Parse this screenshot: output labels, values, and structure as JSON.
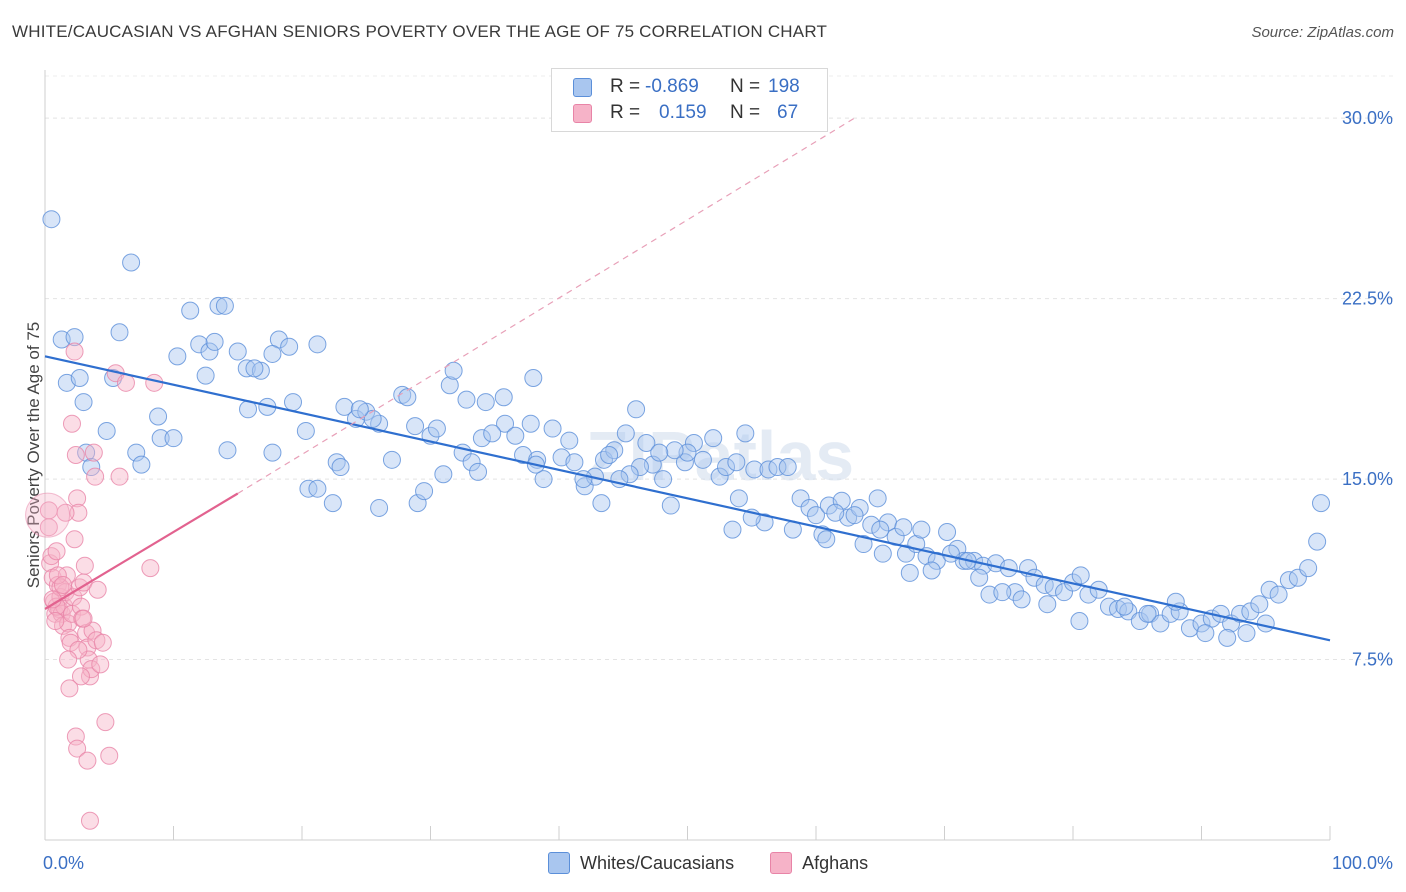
{
  "title": "WHITE/CAUCASIAN VS AFGHAN SENIORS POVERTY OVER THE AGE OF 75 CORRELATION CHART",
  "source": "Source: ZipAtlas.com",
  "watermark": "ZIPatlas",
  "legend_stats": [
    {
      "r_label": "R =",
      "r_value": "-0.869",
      "n_label": "N =",
      "n_value": "198",
      "color": "#a9c6ef"
    },
    {
      "r_label": "R =",
      "r_value": "0.159",
      "n_label": "N =",
      "n_value": "67",
      "color": "#f6b3c8"
    }
  ],
  "legend_bottom": [
    {
      "label": "Whites/Caucasians",
      "color": "#a9c6ef"
    },
    {
      "label": "Afghans",
      "color": "#f6b3c8"
    }
  ],
  "chart_data": {
    "type": "scatter",
    "title": "WHITE/CAUCASIAN VS AFGHAN SENIORS POVERTY OVER THE AGE OF 75 CORRELATION CHART",
    "xlabel": "",
    "ylabel": "Seniors Poverty Over the Age of 75",
    "xlim": [
      0,
      100
    ],
    "ylim": [
      0,
      32
    ],
    "x_tick_labels": [
      "0.0%",
      "100.0%"
    ],
    "y_ticks": [
      7.5,
      15.0,
      22.5,
      30.0
    ],
    "y_tick_labels": [
      "7.5%",
      "15.0%",
      "22.5%",
      "30.0%"
    ],
    "grid": true,
    "series": [
      {
        "name": "Whites/Caucasians",
        "color": "#5b8fd9",
        "fill": "#a9c6ef",
        "trend": {
          "x": [
            0,
            100
          ],
          "y": [
            20.1,
            8.3
          ],
          "color": "#2f6fcf",
          "style": "solid"
        },
        "points": [
          [
            0.5,
            25.8
          ],
          [
            6.7,
            24.0
          ],
          [
            11.3,
            22.0
          ],
          [
            13.5,
            22.2
          ],
          [
            14.0,
            22.2
          ],
          [
            1.3,
            20.8
          ],
          [
            2.3,
            20.9
          ],
          [
            5.8,
            21.1
          ],
          [
            10.3,
            20.1
          ],
          [
            12.0,
            20.6
          ],
          [
            12.8,
            20.3
          ],
          [
            13.2,
            20.7
          ],
          [
            15.0,
            20.3
          ],
          [
            18.2,
            20.8
          ],
          [
            19.0,
            20.5
          ],
          [
            21.2,
            20.6
          ],
          [
            17.7,
            20.2
          ],
          [
            15.7,
            19.6
          ],
          [
            16.8,
            19.5
          ],
          [
            16.3,
            19.6
          ],
          [
            1.7,
            19.0
          ],
          [
            2.7,
            19.2
          ],
          [
            5.3,
            19.2
          ],
          [
            12.5,
            19.3
          ],
          [
            3.0,
            18.2
          ],
          [
            8.8,
            17.6
          ],
          [
            15.8,
            17.9
          ],
          [
            17.3,
            18.0
          ],
          [
            19.3,
            18.2
          ],
          [
            23.3,
            18.0
          ],
          [
            24.2,
            17.5
          ],
          [
            25.0,
            17.8
          ],
          [
            26.0,
            17.3
          ],
          [
            27.8,
            18.5
          ],
          [
            28.2,
            18.4
          ],
          [
            4.8,
            17.0
          ],
          [
            9.0,
            16.7
          ],
          [
            10.0,
            16.7
          ],
          [
            14.2,
            16.2
          ],
          [
            7.1,
            16.1
          ],
          [
            3.2,
            16.1
          ],
          [
            17.7,
            16.1
          ],
          [
            20.3,
            17.0
          ],
          [
            22.7,
            15.7
          ],
          [
            28.8,
            17.2
          ],
          [
            30.0,
            16.8
          ],
          [
            30.5,
            17.1
          ],
          [
            31.5,
            18.9
          ],
          [
            31.8,
            19.5
          ],
          [
            32.8,
            18.3
          ],
          [
            34.3,
            18.2
          ],
          [
            35.7,
            18.4
          ],
          [
            34.0,
            16.7
          ],
          [
            32.5,
            16.1
          ],
          [
            35.8,
            17.3
          ],
          [
            37.8,
            17.3
          ],
          [
            37.2,
            16.0
          ],
          [
            38.0,
            19.2
          ],
          [
            38.3,
            15.8
          ],
          [
            33.2,
            15.7
          ],
          [
            3.6,
            15.5
          ],
          [
            7.5,
            15.6
          ],
          [
            20.5,
            14.6
          ],
          [
            21.2,
            14.6
          ],
          [
            22.4,
            14.0
          ],
          [
            26.0,
            13.8
          ],
          [
            29.0,
            14.0
          ],
          [
            29.5,
            14.5
          ],
          [
            38.8,
            15.0
          ],
          [
            38.2,
            15.6
          ],
          [
            40.2,
            15.9
          ],
          [
            41.2,
            15.7
          ],
          [
            42.0,
            14.7
          ],
          [
            42.8,
            15.1
          ],
          [
            43.3,
            14.0
          ],
          [
            41.9,
            15.0
          ],
          [
            43.5,
            15.8
          ],
          [
            44.3,
            16.2
          ],
          [
            45.2,
            16.9
          ],
          [
            46.0,
            17.9
          ],
          [
            46.8,
            16.5
          ],
          [
            47.3,
            15.6
          ],
          [
            48.1,
            15.0
          ],
          [
            48.7,
            13.9
          ],
          [
            49.8,
            15.7
          ],
          [
            50.5,
            16.5
          ],
          [
            51.2,
            15.8
          ],
          [
            52.0,
            16.7
          ],
          [
            52.5,
            15.1
          ],
          [
            53.0,
            15.5
          ],
          [
            53.8,
            15.7
          ],
          [
            54.5,
            16.9
          ],
          [
            55.2,
            15.4
          ],
          [
            56.3,
            15.4
          ],
          [
            57.0,
            15.5
          ],
          [
            57.8,
            15.5
          ],
          [
            58.8,
            14.2
          ],
          [
            59.5,
            13.8
          ],
          [
            60.0,
            13.5
          ],
          [
            61.0,
            13.9
          ],
          [
            62.0,
            14.1
          ],
          [
            62.5,
            13.4
          ],
          [
            63.4,
            13.8
          ],
          [
            64.3,
            13.1
          ],
          [
            64.8,
            14.2
          ],
          [
            65.6,
            13.2
          ],
          [
            66.2,
            12.6
          ],
          [
            67.0,
            11.9
          ],
          [
            67.8,
            12.3
          ],
          [
            68.6,
            11.8
          ],
          [
            69.4,
            11.6
          ],
          [
            70.2,
            12.8
          ],
          [
            71.0,
            12.1
          ],
          [
            71.5,
            11.6
          ],
          [
            72.3,
            11.6
          ],
          [
            73.0,
            11.4
          ],
          [
            73.5,
            10.2
          ],
          [
            74.0,
            11.5
          ],
          [
            75.0,
            11.3
          ],
          [
            75.5,
            10.3
          ],
          [
            76.5,
            11.3
          ],
          [
            77.0,
            10.9
          ],
          [
            77.8,
            10.6
          ],
          [
            78.5,
            10.5
          ],
          [
            79.3,
            10.3
          ],
          [
            80.0,
            10.7
          ],
          [
            80.6,
            11.0
          ],
          [
            81.2,
            10.2
          ],
          [
            82.0,
            10.4
          ],
          [
            82.8,
            9.7
          ],
          [
            83.5,
            9.6
          ],
          [
            84.3,
            9.5
          ],
          [
            85.2,
            9.1
          ],
          [
            86.0,
            9.4
          ],
          [
            86.8,
            9.0
          ],
          [
            87.6,
            9.4
          ],
          [
            88.3,
            9.5
          ],
          [
            89.1,
            8.8
          ],
          [
            90.0,
            9.0
          ],
          [
            90.8,
            9.2
          ],
          [
            91.5,
            9.4
          ],
          [
            92.3,
            9.0
          ],
          [
            93.0,
            9.4
          ],
          [
            93.8,
            9.5
          ],
          [
            94.5,
            9.8
          ],
          [
            95.3,
            10.4
          ],
          [
            96.0,
            10.2
          ],
          [
            96.8,
            10.8
          ],
          [
            97.5,
            10.9
          ],
          [
            98.3,
            11.3
          ],
          [
            99.0,
            12.4
          ],
          [
            99.3,
            14.0
          ],
          [
            84.0,
            9.7
          ],
          [
            85.8,
            9.4
          ],
          [
            88.0,
            9.9
          ],
          [
            90.3,
            8.6
          ],
          [
            92.0,
            8.4
          ],
          [
            93.5,
            8.6
          ],
          [
            95.0,
            9.0
          ],
          [
            80.5,
            9.1
          ],
          [
            78.0,
            9.8
          ],
          [
            76.0,
            10.0
          ],
          [
            74.5,
            10.3
          ],
          [
            72.7,
            10.9
          ],
          [
            71.8,
            11.6
          ],
          [
            70.5,
            11.9
          ],
          [
            68.2,
            12.9
          ],
          [
            66.8,
            13.0
          ],
          [
            65.0,
            12.9
          ],
          [
            63.7,
            12.3
          ],
          [
            61.5,
            13.6
          ],
          [
            60.5,
            12.7
          ],
          [
            58.2,
            12.9
          ],
          [
            56.0,
            13.2
          ],
          [
            55.0,
            13.4
          ],
          [
            54.0,
            14.2
          ],
          [
            53.5,
            12.9
          ],
          [
            50.0,
            16.1
          ],
          [
            49.0,
            16.2
          ],
          [
            47.8,
            16.1
          ],
          [
            46.3,
            15.5
          ],
          [
            45.5,
            15.2
          ],
          [
            44.7,
            15.0
          ],
          [
            43.9,
            16.0
          ],
          [
            40.8,
            16.6
          ],
          [
            39.5,
            17.1
          ],
          [
            36.6,
            16.8
          ],
          [
            34.8,
            16.9
          ],
          [
            33.7,
            15.3
          ],
          [
            31.0,
            15.2
          ],
          [
            27.0,
            15.8
          ],
          [
            25.5,
            17.5
          ],
          [
            24.5,
            17.9
          ],
          [
            23.0,
            15.5
          ],
          [
            60.8,
            12.5
          ],
          [
            63.0,
            13.5
          ],
          [
            65.2,
            11.9
          ],
          [
            67.3,
            11.1
          ],
          [
            69.0,
            11.2
          ]
        ]
      },
      {
        "name": "Afghans",
        "color": "#e884a7",
        "fill": "#f6b3c8",
        "trend": {
          "x": [
            0,
            15
          ],
          "y": [
            9.6,
            14.4
          ],
          "color": "#e2628f",
          "style": "solid"
        },
        "trend_extension": {
          "x": [
            15,
            63
          ],
          "y": [
            14.4,
            30.0
          ],
          "color": "#e8a0b8",
          "style": "dashed"
        },
        "points": [
          [
            0.3,
            13.7
          ],
          [
            0.3,
            13.0
          ],
          [
            0.4,
            11.5
          ],
          [
            0.5,
            11.8
          ],
          [
            0.6,
            10.9
          ],
          [
            0.7,
            9.9
          ],
          [
            0.8,
            9.4
          ],
          [
            0.9,
            12.0
          ],
          [
            1.0,
            10.6
          ],
          [
            1.1,
            9.6
          ],
          [
            1.2,
            10.1
          ],
          [
            1.3,
            9.4
          ],
          [
            1.4,
            8.9
          ],
          [
            1.5,
            9.7
          ],
          [
            1.6,
            10.3
          ],
          [
            1.7,
            11.0
          ],
          [
            1.8,
            9.0
          ],
          [
            1.9,
            8.4
          ],
          [
            2.0,
            8.2
          ],
          [
            2.1,
            9.4
          ],
          [
            2.2,
            10.1
          ],
          [
            2.3,
            12.5
          ],
          [
            2.4,
            16.0
          ],
          [
            2.5,
            14.2
          ],
          [
            2.6,
            13.6
          ],
          [
            2.7,
            10.5
          ],
          [
            2.8,
            9.7
          ],
          [
            2.9,
            9.2
          ],
          [
            3.0,
            10.7
          ],
          [
            3.1,
            11.4
          ],
          [
            3.2,
            8.6
          ],
          [
            3.3,
            8.0
          ],
          [
            3.4,
            7.5
          ],
          [
            3.5,
            6.8
          ],
          [
            3.6,
            7.1
          ],
          [
            3.7,
            8.7
          ],
          [
            3.8,
            16.1
          ],
          [
            3.9,
            15.1
          ],
          [
            4.0,
            8.3
          ],
          [
            4.1,
            10.4
          ],
          [
            4.5,
            8.2
          ],
          [
            4.7,
            4.9
          ],
          [
            5.0,
            3.5
          ],
          [
            5.5,
            19.4
          ],
          [
            5.8,
            15.1
          ],
          [
            6.3,
            19.0
          ],
          [
            8.2,
            11.3
          ],
          [
            8.5,
            19.0
          ],
          [
            2.1,
            17.3
          ],
          [
            2.3,
            20.3
          ],
          [
            1.6,
            13.6
          ],
          [
            1.2,
            10.5
          ],
          [
            0.9,
            9.7
          ],
          [
            2.8,
            6.8
          ],
          [
            2.4,
            4.3
          ],
          [
            2.5,
            3.8
          ],
          [
            3.3,
            3.3
          ],
          [
            3.5,
            0.8
          ],
          [
            1.9,
            6.3
          ],
          [
            2.6,
            7.9
          ],
          [
            3.0,
            9.2
          ],
          [
            1.0,
            11.0
          ],
          [
            0.6,
            10.0
          ],
          [
            1.4,
            10.6
          ],
          [
            0.8,
            9.1
          ],
          [
            1.8,
            7.5
          ],
          [
            4.3,
            7.3
          ]
        ]
      }
    ]
  }
}
